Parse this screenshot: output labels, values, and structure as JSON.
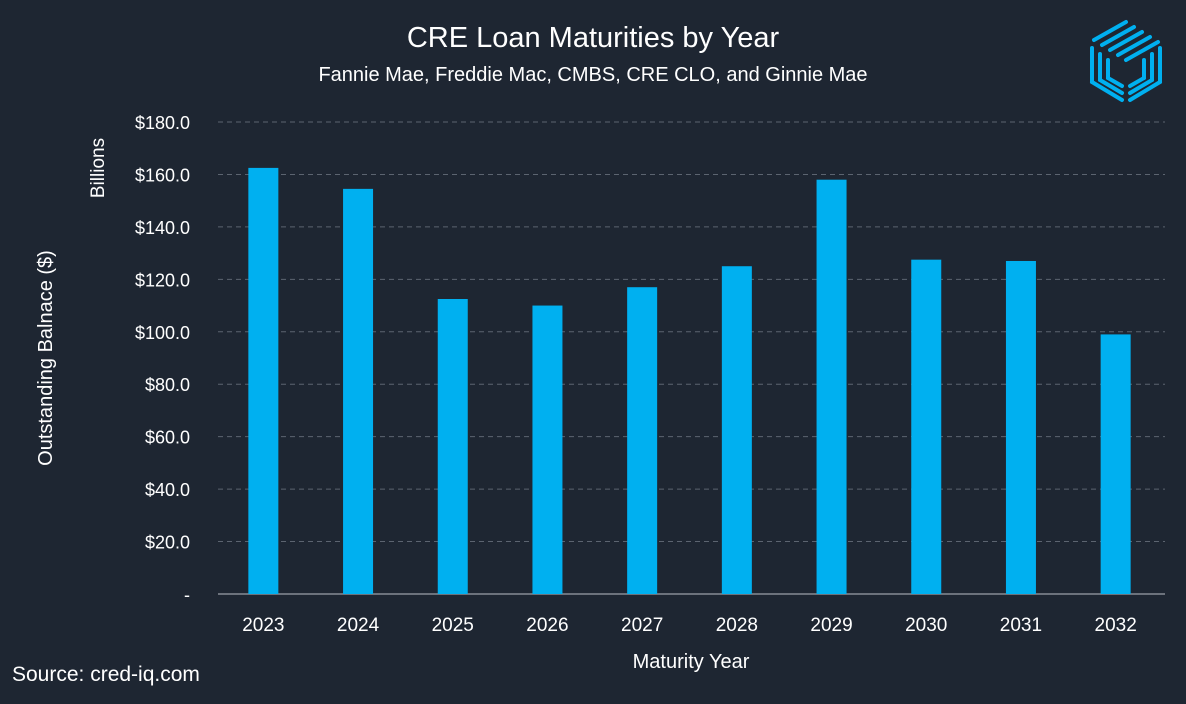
{
  "title": "CRE Loan Maturities by Year",
  "subtitle": "Fannie Mae, Freddie Mac, CMBS, CRE CLO, and Ginnie Mae",
  "source": "Source: cred-iq.com",
  "logo_icon": "cube-stripes-logo-icon",
  "colors": {
    "background": "#1e2632",
    "bar": "#00b0f0",
    "grid": "#5c6470",
    "text": "#ffffff"
  },
  "chart_data": {
    "type": "bar",
    "categories": [
      "2023",
      "2024",
      "2025",
      "2026",
      "2027",
      "2028",
      "2029",
      "2030",
      "2031",
      "2032"
    ],
    "values": [
      162.5,
      154.5,
      112.5,
      110.0,
      117.0,
      125.0,
      158.0,
      127.5,
      127.0,
      99.0
    ],
    "xlabel": "Maturity Year",
    "ylabel": "Outstanding Balnace ($)",
    "yunit_label": "Billions",
    "ylim": [
      0,
      180
    ],
    "yticks": [
      0,
      20,
      40,
      60,
      80,
      100,
      120,
      140,
      160,
      180
    ],
    "ytick_labels": [
      "-",
      "$20.0",
      "$40.0",
      "$60.0",
      "$80.0",
      "$100.0",
      "$120.0",
      "$140.0",
      "$160.0",
      "$180.0"
    ],
    "grid": true,
    "grid_style": "dashed",
    "legend": "none"
  }
}
